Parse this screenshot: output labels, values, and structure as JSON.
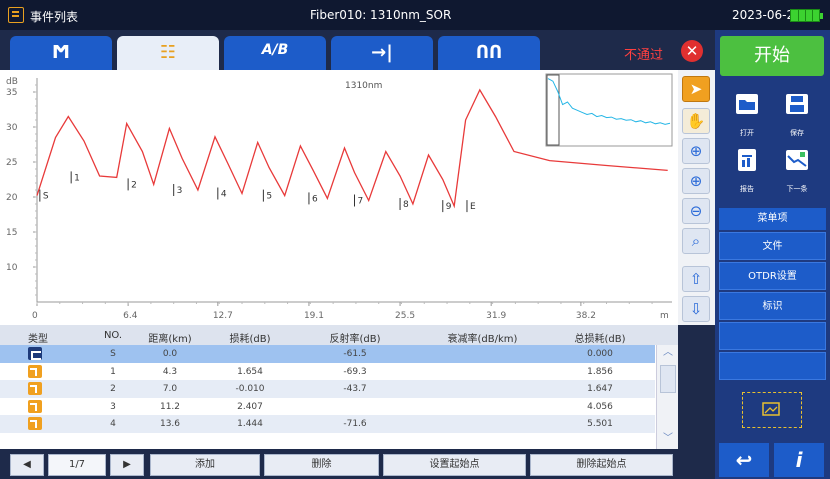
{
  "topbar": {
    "title": "事件列表",
    "center": "Fiber010: 1310nm_SOR",
    "date": "2023-06-23"
  },
  "tabs": [
    {
      "icon": "trace-icon",
      "glyph": "Ϻ"
    },
    {
      "icon": "event-list-icon",
      "glyph": "☷",
      "active": true
    },
    {
      "icon": "ab-compare-icon",
      "glyph": "A/B"
    },
    {
      "icon": "arrow-end-icon",
      "glyph": "→|"
    },
    {
      "icon": "fiber-link-icon",
      "glyph": "ՈՈ"
    }
  ],
  "status": {
    "fail_text": "不通过",
    "fail_color": "#ff4040"
  },
  "chart_data": {
    "type": "line",
    "title": "1310nm",
    "ylabel": "dB",
    "xlabel": "m",
    "ylim": [
      5,
      37
    ],
    "xlim": [
      0,
      44.6
    ],
    "y_ticks": [
      "35",
      "30",
      "25",
      "20",
      "15",
      "10"
    ],
    "x_ticks": [
      "0",
      "6.4",
      "12.7",
      "19.1",
      "25.5",
      "31.9",
      "38.2"
    ],
    "series": [
      {
        "color": "#e83a3a",
        "x": [
          0,
          1.3,
          2.2,
          3.3,
          4.4,
          5.6,
          6.3,
          7.4,
          8.2,
          9.3,
          10.2,
          11.3,
          12.5,
          13.4,
          14.4,
          15.5,
          16.3,
          17.4,
          18.5,
          19.4,
          20.4,
          21.6,
          22.3,
          23.3,
          24.5,
          25.5,
          26.4,
          27.5,
          28.5,
          29.3,
          30.1,
          31.1,
          32.2,
          33.5,
          36.0,
          40.0,
          44.3
        ],
        "y": [
          20.2,
          28.5,
          31.5,
          28.0,
          23.0,
          22.8,
          30.5,
          26.5,
          21.8,
          29.8,
          25.5,
          21.0,
          28.6,
          24.8,
          20.5,
          27.8,
          24.2,
          20.2,
          27.3,
          23.8,
          19.8,
          27.0,
          23.5,
          19.5,
          26.5,
          23.0,
          19.0,
          26.0,
          22.5,
          18.7,
          31.0,
          35.3,
          31.5,
          26.5,
          25.2,
          24.5,
          23.8
        ]
      }
    ],
    "events": [
      "S",
      "1",
      "2",
      "3",
      "4",
      "5",
      "6",
      "7",
      "8",
      "9",
      "E"
    ],
    "event_x": [
      0.2,
      2.4,
      6.4,
      9.6,
      12.7,
      15.9,
      19.1,
      22.3,
      25.5,
      28.5,
      30.2
    ],
    "event_y": [
      20.2,
      22.8,
      21.8,
      21.0,
      20.5,
      20.2,
      19.8,
      19.5,
      19.0,
      18.7,
      18.7
    ],
    "inset_series": {
      "color": "#25b6e6",
      "y": [
        0.05,
        0.1,
        0.3,
        0.55,
        0.5,
        0.62,
        0.66,
        0.7,
        0.74,
        0.72,
        0.78,
        0.76,
        0.8,
        0.79,
        0.83,
        0.82,
        0.85,
        0.84,
        0.88,
        0.86,
        0.9,
        0.88,
        0.92,
        0.9,
        0.93,
        0.91
      ]
    }
  },
  "tools": [
    {
      "icon": "pointer-icon",
      "glyph": "➤",
      "active": true
    },
    {
      "icon": "hand-icon",
      "glyph": "✋",
      "dim": true
    },
    {
      "icon": "zoom-in-h-icon",
      "glyph": "⊕"
    },
    {
      "icon": "zoom-in-v-icon",
      "glyph": "⊕"
    },
    {
      "icon": "zoom-out-icon",
      "glyph": "⊖"
    },
    {
      "icon": "zoom-reset-icon",
      "glyph": "⌕"
    },
    {
      "icon": "move-up-icon",
      "glyph": "⇧"
    },
    {
      "icon": "move-down-icon",
      "glyph": "⇩"
    }
  ],
  "table": {
    "headers": [
      "类型",
      "NO.",
      "距离(km)",
      "损耗(dB)",
      "反射率(dB)",
      "衰减率(dB/km)",
      "总损耗(dB)"
    ],
    "rows": [
      {
        "type": "start",
        "no": "S",
        "dist": "0.0",
        "loss": "",
        "refl": "-61.5",
        "att": "",
        "total": "0.000"
      },
      {
        "type": "reflect",
        "no": "1",
        "dist": "4.3",
        "loss": "1.654",
        "refl": "-69.3",
        "att": "",
        "total": "1.856"
      },
      {
        "type": "reflect",
        "no": "2",
        "dist": "7.0",
        "loss": "-0.010",
        "refl": "-43.7",
        "att": "",
        "total": "1.647"
      },
      {
        "type": "reflect",
        "no": "3",
        "dist": "11.2",
        "loss": "2.407",
        "refl": "",
        "att": "",
        "total": "4.056"
      },
      {
        "type": "reflect",
        "no": "4",
        "dist": "13.6",
        "loss": "1.444",
        "refl": "-71.6",
        "att": "",
        "total": "5.501"
      }
    ]
  },
  "bottom": {
    "page": "1/7",
    "add": "添加",
    "delete": "删除",
    "set_start": "设置起始点",
    "delete_start": "删除起始点"
  },
  "side": {
    "start": "开始",
    "open": "打开",
    "save": "保存",
    "report": "报告",
    "next": "下一条",
    "menu_head": "菜单项",
    "menu_items": [
      "文件",
      "OTDR设置",
      "标识",
      "",
      ""
    ],
    "back": "↩",
    "info": "i"
  }
}
